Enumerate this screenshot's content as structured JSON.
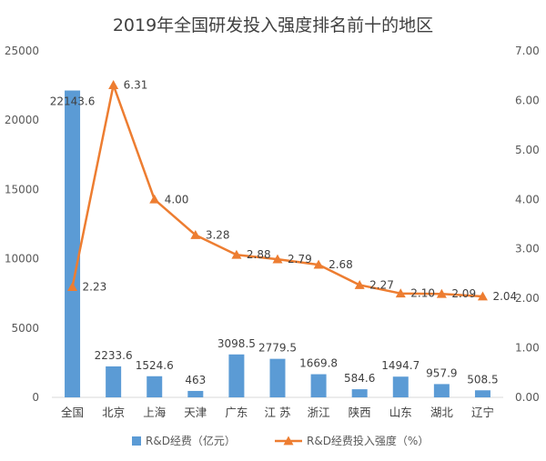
{
  "chart_data": {
    "type": "bar",
    "title": "2019年全国研发投入强度排名前十的地区",
    "categories": [
      "全国",
      "北京",
      "上海",
      "天津",
      "广东",
      "江 苏",
      "浙江",
      "陕西",
      "山东",
      "湖北",
      "辽宁"
    ],
    "series": [
      {
        "name": "R&D经费（亿元）",
        "type": "bar",
        "axis": "left",
        "color": "#5b9bd5",
        "values": [
          22143.6,
          2233.6,
          1524.6,
          463,
          3098.5,
          2779.5,
          1669.8,
          584.6,
          1494.7,
          957.9,
          508.5
        ],
        "labels": [
          "22143.6",
          "2233.6",
          "1524.6",
          "463",
          "3098.5",
          "2779.5",
          "1669.8",
          "584.6",
          "1494.7",
          "957.9",
          "508.5"
        ]
      },
      {
        "name": "R&D经费投入强度（%）",
        "type": "line",
        "axis": "right",
        "color": "#ed7d31",
        "marker": "triangle",
        "values": [
          2.23,
          6.31,
          4.0,
          3.28,
          2.88,
          2.79,
          2.68,
          2.27,
          2.1,
          2.09,
          2.04
        ],
        "labels": [
          "2.23",
          "6.31",
          "4.00",
          "3.28",
          "2.88",
          "2.79",
          "2.68",
          "2.27",
          "2.10",
          "2.09",
          "2.04"
        ]
      }
    ],
    "y_left": {
      "min": 0,
      "max": 25000,
      "ticks": [
        "0",
        "5000",
        "10000",
        "15000",
        "20000",
        "25000"
      ]
    },
    "y_right": {
      "min": 0,
      "max": 7,
      "ticks": [
        "0.00",
        "1.00",
        "2.00",
        "3.00",
        "4.00",
        "5.00",
        "6.00",
        "7.00"
      ]
    },
    "grid": false,
    "legend_position": "bottom"
  }
}
